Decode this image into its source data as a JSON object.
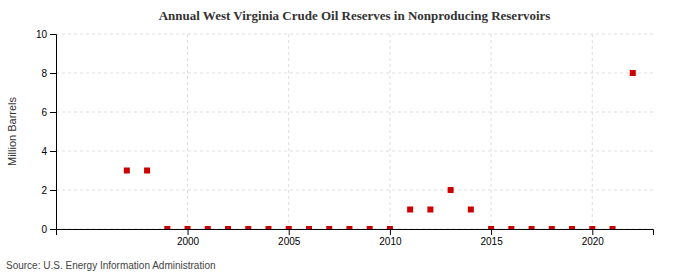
{
  "chart_data": {
    "type": "scatter",
    "title": "Annual West Virginia Crude Oil Reserves in Nonproducing Reservoirs",
    "ylabel": "Million Barrels",
    "annotations": [
      "Source: U.S. Energy Information Administration"
    ],
    "x": [
      1997,
      1998,
      1999,
      2000,
      2001,
      2002,
      2003,
      2004,
      2005,
      2006,
      2007,
      2008,
      2009,
      2010,
      2011,
      2012,
      2013,
      2014,
      2015,
      2016,
      2017,
      2018,
      2019,
      2020,
      2021,
      2022
    ],
    "values": [
      3,
      3,
      0,
      0,
      0,
      0,
      0,
      0,
      0,
      0,
      0,
      0,
      0,
      0,
      1,
      1,
      2,
      1,
      0,
      0,
      0,
      0,
      0,
      0,
      0,
      8
    ],
    "color": "#cc0000",
    "marker": "square",
    "xlim": [
      1993.5,
      2023
    ],
    "ylim": [
      0,
      10
    ],
    "xticks": [
      2000,
      2005,
      2010,
      2015,
      2020
    ],
    "yticks": [
      0,
      2,
      4,
      6,
      8,
      10
    ],
    "grid": true
  }
}
